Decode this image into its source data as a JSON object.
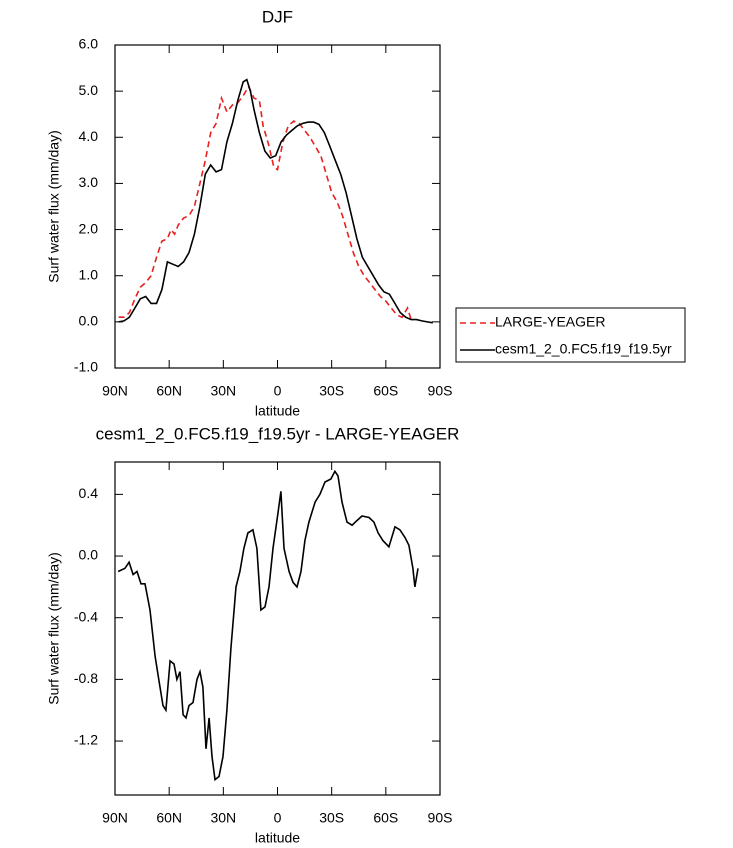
{
  "chart_data": [
    {
      "type": "line",
      "title": "DJF",
      "xlabel": "latitude",
      "ylabel": "Surf water flux (mm/day)",
      "xlim": [
        90,
        -90
      ],
      "xticks": [
        {
          "value": 90,
          "label": "90N"
        },
        {
          "value": 60,
          "label": "60N"
        },
        {
          "value": 30,
          "label": "30N"
        },
        0,
        {
          "value": -30,
          "label": "30S"
        },
        {
          "value": -60,
          "label": "60S"
        },
        {
          "value": -90,
          "label": "90S"
        }
      ],
      "ylim": [
        -1,
        6
      ],
      "yticks": [
        {
          "value": -1,
          "label": "-1.0"
        },
        {
          "value": 0,
          "label": "0.0"
        },
        {
          "value": 1,
          "label": "1.0"
        },
        {
          "value": 2,
          "label": "2.0"
        },
        {
          "value": 3,
          "label": "3.0"
        },
        {
          "value": 4,
          "label": "4.0"
        },
        {
          "value": 5,
          "label": "5.0"
        },
        {
          "value": 6,
          "label": "6.0"
        }
      ],
      "legend_position": "right",
      "series": [
        {
          "name": "LARGE-YEAGER",
          "color": "#e8201e",
          "line_style": "dashed",
          "x": [
            88,
            85,
            82,
            79,
            76,
            73,
            70,
            67,
            64,
            61,
            59,
            57,
            55,
            52,
            49,
            46,
            43,
            40,
            37,
            34,
            31,
            28,
            25,
            22,
            19,
            16,
            13,
            10,
            8,
            5,
            2,
            0,
            -3,
            -6,
            -9,
            -12,
            -15,
            -18,
            -21,
            -24,
            -27,
            -30,
            -33,
            -36,
            -39,
            -42,
            -45,
            -48,
            -51,
            -54,
            -57,
            -60,
            -63,
            -66,
            -69,
            -72,
            -74
          ],
          "values": [
            0.1,
            0.1,
            0.2,
            0.5,
            0.75,
            0.85,
            1.0,
            1.4,
            1.75,
            1.8,
            2.0,
            1.9,
            2.1,
            2.25,
            2.3,
            2.5,
            3.0,
            3.5,
            4.1,
            4.3,
            4.85,
            4.55,
            4.7,
            4.75,
            4.9,
            5.1,
            4.85,
            4.8,
            4.25,
            3.85,
            3.35,
            3.3,
            3.9,
            4.25,
            4.35,
            4.3,
            4.15,
            4.0,
            3.8,
            3.6,
            3.2,
            2.8,
            2.6,
            2.3,
            1.9,
            1.5,
            1.2,
            1.0,
            0.85,
            0.7,
            0.55,
            0.45,
            0.3,
            0.15,
            0.1,
            0.3,
            0.05
          ]
        },
        {
          "name": "cesm1_2_0.FC5.f19_f19.5yr",
          "color": "#000000",
          "line_style": "solid",
          "x": [
            88,
            85,
            82,
            79,
            76,
            73,
            70,
            67,
            64,
            61,
            58,
            55,
            52,
            49,
            46,
            43,
            40,
            37,
            34,
            31,
            28,
            25,
            22,
            19,
            17,
            15,
            13,
            10,
            7,
            4,
            1,
            -2,
            -5,
            -8,
            -11,
            -14,
            -17,
            -20,
            -23,
            -26,
            -29,
            -32,
            -35,
            -38,
            -41,
            -44,
            -47,
            -50,
            -53,
            -56,
            -59,
            -62,
            -65,
            -68,
            -71,
            -74,
            -77,
            -80,
            -83,
            -86
          ],
          "values": [
            0.0,
            0.02,
            0.1,
            0.3,
            0.5,
            0.55,
            0.4,
            0.4,
            0.7,
            1.3,
            1.25,
            1.2,
            1.3,
            1.5,
            1.9,
            2.5,
            3.2,
            3.4,
            3.25,
            3.3,
            3.9,
            4.3,
            4.8,
            5.2,
            5.25,
            5.0,
            4.6,
            4.1,
            3.7,
            3.55,
            3.6,
            3.9,
            4.05,
            4.15,
            4.25,
            4.3,
            4.33,
            4.33,
            4.28,
            4.1,
            3.8,
            3.5,
            3.2,
            2.8,
            2.3,
            1.8,
            1.4,
            1.2,
            1.0,
            0.8,
            0.65,
            0.6,
            0.4,
            0.2,
            0.1,
            0.05,
            0.05,
            0.02,
            0.0,
            -0.02
          ]
        }
      ]
    },
    {
      "type": "line",
      "title": "cesm1_2_0.FC5.f19_f19.5yr - LARGE-YEAGER",
      "xlabel": "latitude",
      "ylabel": "Surf water flux (mm/day)",
      "xlim": [
        90,
        -90
      ],
      "xticks": [
        {
          "value": 90,
          "label": "90N"
        },
        {
          "value": 60,
          "label": "60N"
        },
        {
          "value": 30,
          "label": "30N"
        },
        0,
        {
          "value": -30,
          "label": "30S"
        },
        {
          "value": -60,
          "label": "60S"
        },
        {
          "value": -90,
          "label": "90S"
        }
      ],
      "ylim": [
        -1.55,
        0.61
      ],
      "yticks": [
        -1.2,
        -0.8,
        -0.4,
        {
          "value": 0,
          "label": "0.0"
        },
        0.4
      ],
      "series": [
        {
          "color": "#000000",
          "line_style": "solid",
          "x": [
            88.3,
            84.5,
            82.2,
            80.0,
            77.8,
            75.6,
            73.4,
            70.6,
            67.8,
            65.1,
            63.4,
            61.8,
            59.5,
            57.3,
            55.7,
            54.0,
            52.3,
            50.7,
            49.0,
            46.8,
            44.6,
            42.9,
            41.3,
            39.6,
            37.9,
            36.3,
            34.6,
            32.4,
            30.2,
            28.0,
            25.8,
            23.0,
            20.8,
            18.6,
            16.4,
            13.6,
            11.4,
            9.2,
            6.9,
            4.7,
            2.5,
            -0.3,
            -1.9,
            -3.6,
            -6.4,
            -8.6,
            -10.8,
            -13.0,
            -15.2,
            -17.4,
            -20.8,
            -23.5,
            -26.3,
            -29.6,
            -31.8,
            -33.5,
            -35.7,
            -38.5,
            -41.3,
            -44.0,
            -46.8,
            -50.7,
            -53.4,
            -55.7,
            -58.4,
            -61.7,
            -65.1,
            -67.8,
            -70.6,
            -72.8,
            -75.0,
            -76.1,
            -77.8
          ],
          "values": [
            -0.1,
            -0.08,
            -0.04,
            -0.12,
            -0.1,
            -0.18,
            -0.18,
            -0.35,
            -0.65,
            -0.85,
            -0.97,
            -1.0,
            -0.68,
            -0.7,
            -0.8,
            -0.75,
            -1.03,
            -1.05,
            -0.97,
            -0.95,
            -0.8,
            -0.75,
            -0.85,
            -1.25,
            -1.05,
            -1.3,
            -1.45,
            -1.43,
            -1.3,
            -1.0,
            -0.6,
            -0.2,
            -0.1,
            0.05,
            0.15,
            0.17,
            0.05,
            -0.35,
            -0.33,
            -0.2,
            0.05,
            0.28,
            0.42,
            0.05,
            -0.1,
            -0.17,
            -0.2,
            -0.1,
            0.1,
            0.22,
            0.35,
            0.4,
            0.48,
            0.5,
            0.55,
            0.52,
            0.35,
            0.22,
            0.2,
            0.23,
            0.26,
            0.25,
            0.22,
            0.15,
            0.1,
            0.06,
            0.19,
            0.17,
            0.12,
            0.07,
            -0.08,
            -0.2,
            -0.08
          ]
        }
      ]
    }
  ]
}
